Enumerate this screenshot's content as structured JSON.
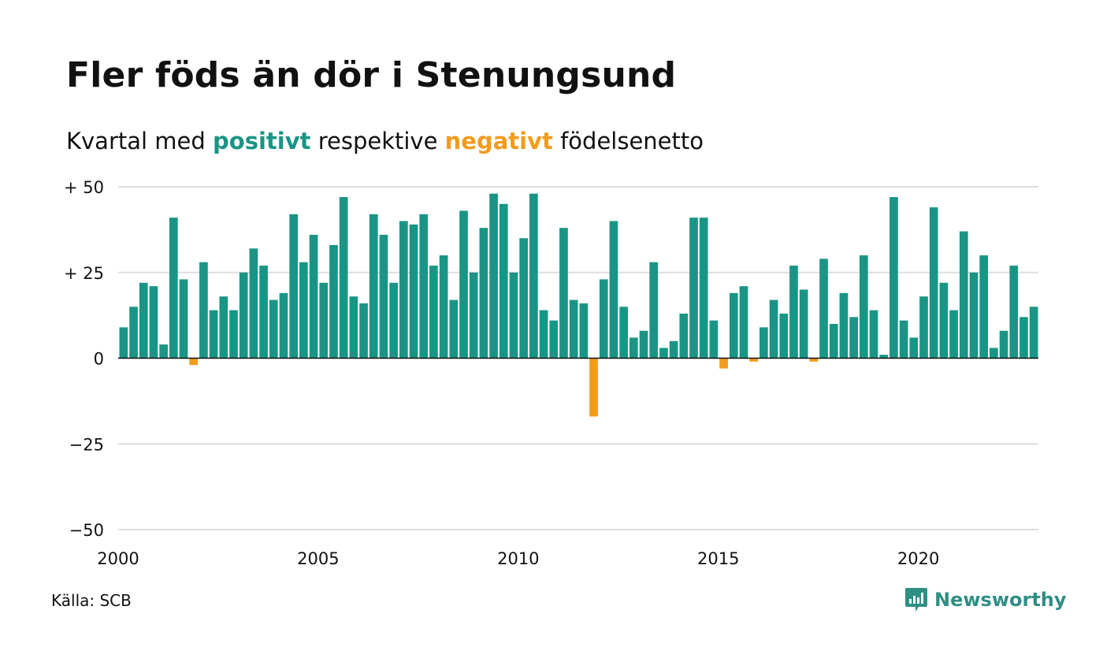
{
  "header": {
    "title": "Fler föds än dör i Stenungsund",
    "subtitle_pre": "Kvartal med ",
    "subtitle_pos": "positivt",
    "subtitle_mid": " respektive ",
    "subtitle_neg": "negativt",
    "subtitle_post": " födelsenetto"
  },
  "footer": {
    "source": "Källa: SCB",
    "brand": "Newsworthy"
  },
  "icons": {
    "logo": "newsworthy-chart-icon"
  },
  "colors": {
    "positive": "#1a9585",
    "negative": "#f29b1c",
    "grid": "#dddddd",
    "zero_line": "#111111"
  },
  "chart_data": {
    "type": "bar",
    "title": "Fler föds än dör i Stenungsund",
    "subtitle": "Kvartal med positivt respektive negativt födelsenetto",
    "xlabel": "",
    "ylabel": "",
    "x_start": 2000,
    "periods_per_year": 4,
    "xlim": [
      2000,
      2023
    ],
    "ylim": [
      -50,
      50
    ],
    "x_ticks": [
      2000,
      2005,
      2010,
      2015,
      2020
    ],
    "y_ticks": [
      50,
      25,
      0,
      -25,
      -50
    ],
    "y_tick_labels": [
      "+ 50",
      "+ 25",
      "0",
      "−25",
      "−50"
    ],
    "grid": true,
    "legend": "none",
    "values": [
      9,
      15,
      22,
      21,
      4,
      41,
      23,
      -2,
      28,
      14,
      18,
      14,
      25,
      32,
      27,
      17,
      19,
      42,
      28,
      36,
      22,
      33,
      47,
      18,
      16,
      42,
      36,
      22,
      40,
      39,
      42,
      27,
      30,
      17,
      43,
      25,
      38,
      48,
      45,
      25,
      35,
      48,
      14,
      11,
      38,
      17,
      16,
      -17,
      23,
      40,
      15,
      6,
      8,
      28,
      3,
      5,
      13,
      41,
      41,
      11,
      -3,
      19,
      21,
      -1,
      9,
      17,
      13,
      27,
      20,
      -1,
      29,
      10,
      19,
      12,
      30,
      14,
      1,
      47,
      11,
      6,
      18,
      44,
      22,
      14,
      37,
      25,
      30,
      3,
      8,
      27,
      12,
      15
    ]
  }
}
